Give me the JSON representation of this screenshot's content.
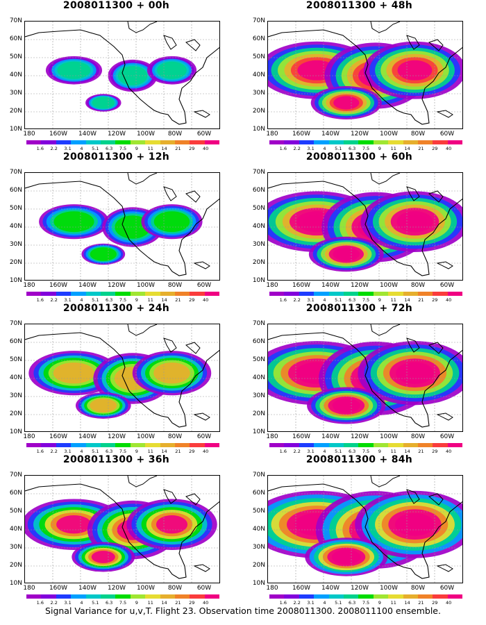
{
  "panels": [
    {
      "title": "2008011300 + 00h",
      "level": 0.35
    },
    {
      "title": "2008011300 + 48h",
      "level": 0.8
    },
    {
      "title": "2008011300 + 12h",
      "level": 0.45
    },
    {
      "title": "2008011300 + 60h",
      "level": 0.85
    },
    {
      "title": "2008011300 + 24h",
      "level": 0.6
    },
    {
      "title": "2008011300 + 72h",
      "level": 0.9
    },
    {
      "title": "2008011300 + 36h",
      "level": 0.7
    },
    {
      "title": "2008011300 + 84h",
      "level": 0.95
    }
  ],
  "y_labels": [
    "70N",
    "60N",
    "50N",
    "40N",
    "30N",
    "20N",
    "10N"
  ],
  "x_labels": [
    "180",
    "160W",
    "140W",
    "120W",
    "100W",
    "80W",
    "60W"
  ],
  "colorbar_labels": [
    "1.6",
    "2.2",
    "3.1",
    "4",
    "5.1",
    "6.3",
    "7.5",
    "9",
    "11",
    "14",
    "21",
    "29",
    "40"
  ],
  "colorbar_colors": [
    "#a000c8",
    "#8200dc",
    "#1e3cff",
    "#00a0ff",
    "#00c8c8",
    "#00d28c",
    "#00dc00",
    "#a0e632",
    "#e6dc32",
    "#e6af2d",
    "#f08228",
    "#fa3c3c",
    "#f00082"
  ],
  "footer": "Signal Variance for u,v,T. Flight 23. Observation time 2008011300. 2008011100 ensemble."
}
